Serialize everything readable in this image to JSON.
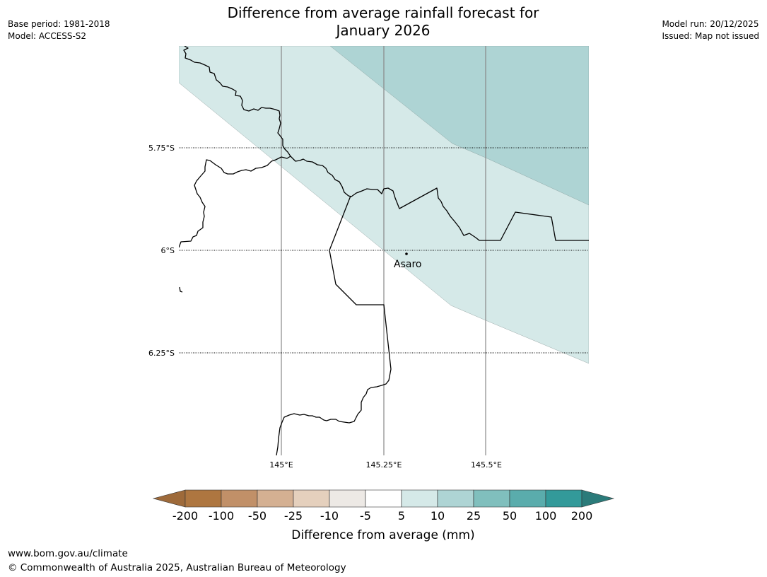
{
  "header": {
    "title_line1": "Difference from average rainfall forecast for",
    "title_line2": "January 2026",
    "base_period": "Base period: 1981-2018",
    "model": "Model: ACCESS-S2",
    "model_run": "Model run: 20/12/2025",
    "issued": "Issued: Map not issued"
  },
  "map": {
    "latitude_labels": [
      "5.75°S",
      "6°S",
      "6.25°S"
    ],
    "longitude_labels": [
      "145°E",
      "145.25°E",
      "145.5°E"
    ],
    "place_label": "Asaro",
    "zones": [
      {
        "name": "5 to 10 mm above average",
        "color": "#d5e9e8"
      },
      {
        "name": "10 to 25 mm above average",
        "color": "#aed4d4"
      }
    ]
  },
  "legend": {
    "tick_labels": [
      "-200",
      "-100",
      "-50",
      "-25",
      "-10",
      "-5",
      "5",
      "10",
      "25",
      "50",
      "100",
      "200"
    ],
    "colors": [
      "#9e6a3a",
      "#ae7640",
      "#c19068",
      "#d4b092",
      "#e5d0bd",
      "#ede9e5",
      "#ffffff",
      "#d5e9e8",
      "#aed4d4",
      "#80bfbd",
      "#5aacac",
      "#339a9a",
      "#2b7b7a"
    ],
    "label": "Difference from average (mm)"
  },
  "footer": {
    "url": "www.bom.gov.au/climate",
    "copyright": "© Commonwealth of Australia 2025, Australian Bureau of Meteorology"
  }
}
